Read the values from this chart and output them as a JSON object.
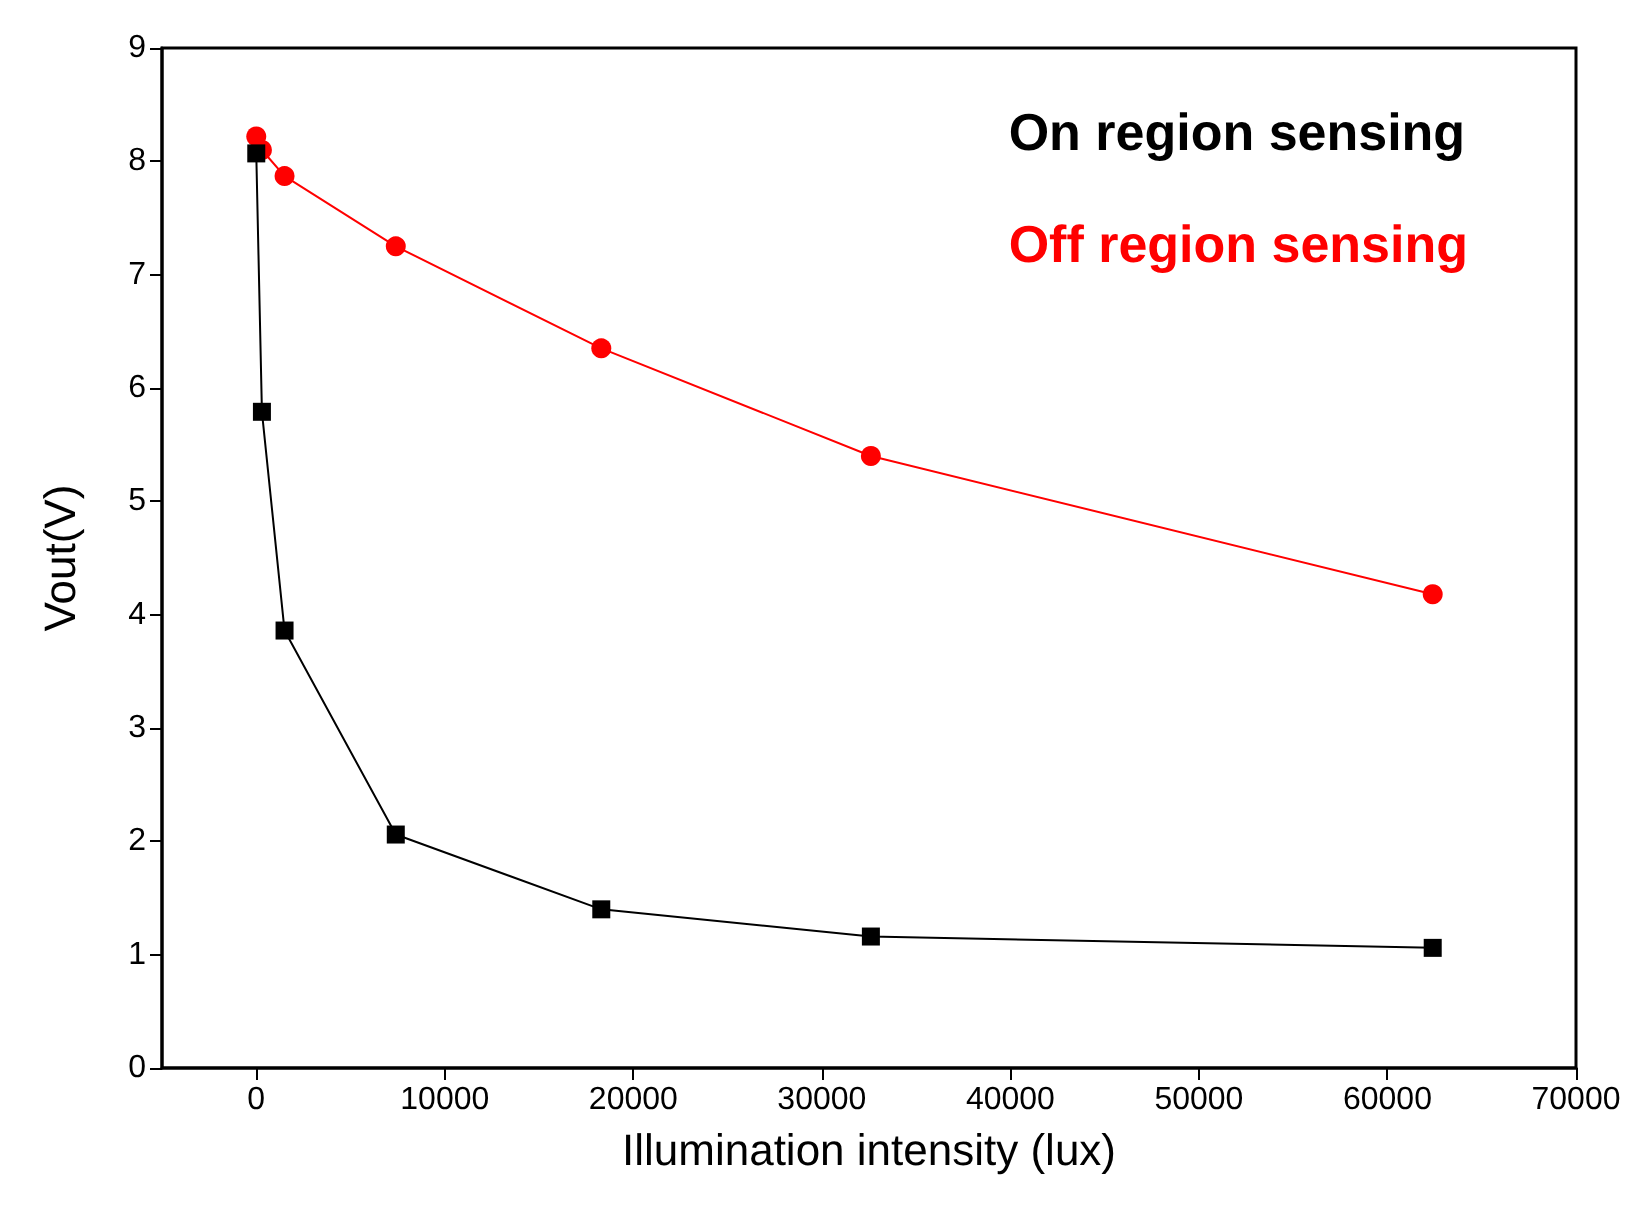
{
  "chart_data": {
    "type": "line",
    "xlabel": "Illumination intensity (lux)",
    "ylabel": "Vout(V)",
    "xlim": [
      -5000,
      70000
    ],
    "xticks": [
      0,
      10000,
      20000,
      30000,
      40000,
      50000,
      60000,
      70000
    ],
    "ylim": [
      0,
      9
    ],
    "yticks": [
      0,
      1,
      2,
      3,
      4,
      5,
      6,
      7,
      8,
      9
    ],
    "grid": false,
    "legend": "top right",
    "line_style": "solid",
    "series": [
      {
        "name": "On region sensing",
        "color": "#000000",
        "marker": "square",
        "x": [
          0,
          300,
          1500,
          7400,
          18300,
          32600,
          62400
        ],
        "values": [
          8.07,
          5.79,
          3.86,
          2.06,
          1.4,
          1.16,
          1.06
        ]
      },
      {
        "name": "Off region sensing",
        "color": "#ff0000",
        "marker": "circle",
        "x": [
          0,
          300,
          1500,
          7400,
          18300,
          32600,
          62400
        ],
        "values": [
          8.22,
          8.1,
          7.87,
          7.25,
          6.35,
          5.4,
          4.18
        ]
      }
    ]
  }
}
